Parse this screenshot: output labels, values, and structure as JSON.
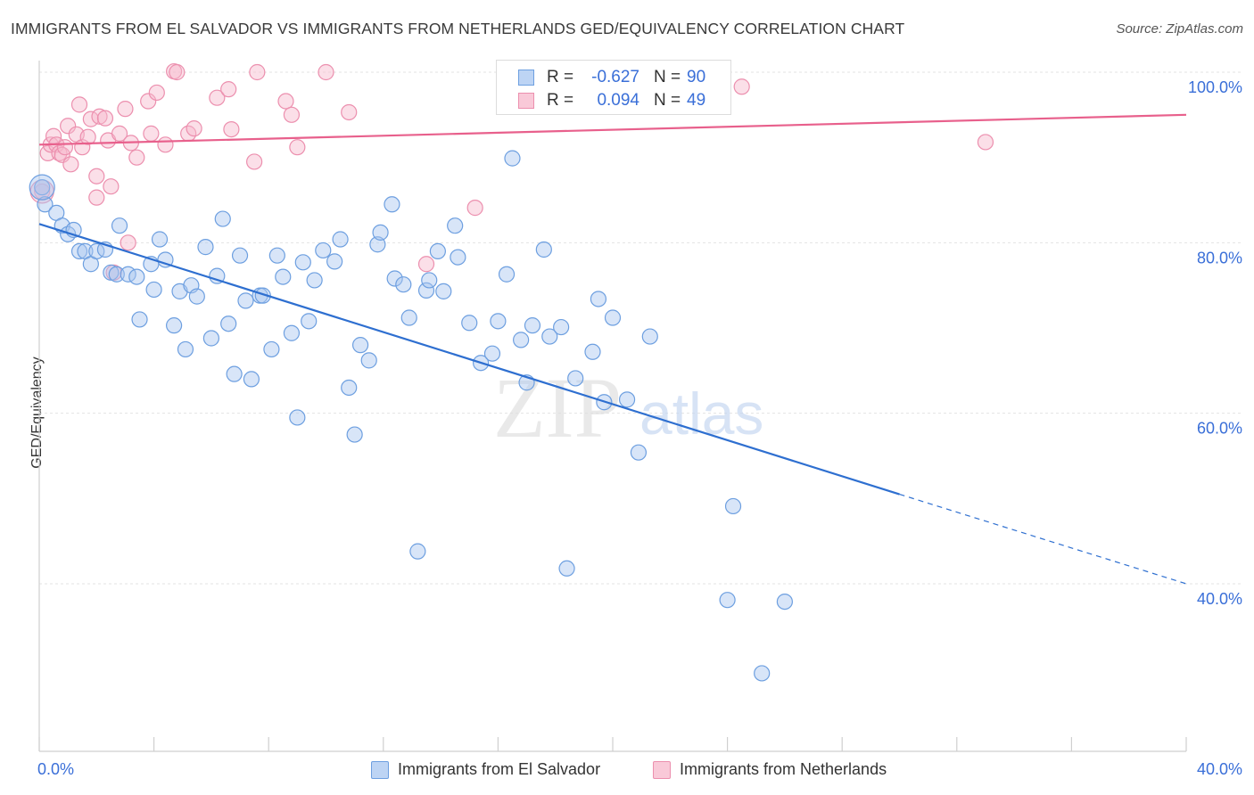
{
  "header": {
    "title": "IMMIGRANTS FROM EL SALVADOR VS IMMIGRANTS FROM NETHERLANDS GED/EQUIVALENCY CORRELATION CHART",
    "source": "Source: ZipAtlas.com"
  },
  "watermark": {
    "zip": "ZIP",
    "atlas": "atlas"
  },
  "colors": {
    "blue_fill": "#a9c6f0",
    "blue_stroke": "#6d9fe0",
    "blue_line": "#2e6fd0",
    "pink_fill": "#f6b9cc",
    "pink_stroke": "#ec8fae",
    "pink_line": "#e8608c",
    "value_text": "#3a6fd8",
    "grid": "#e3e3e3",
    "axis": "#cfcfcf"
  },
  "legend_top": {
    "rows": [
      {
        "r_label": "R =",
        "r_value": "-0.627",
        "n_label": "N =",
        "n_value": "90"
      },
      {
        "r_label": "R =",
        "r_value": "0.094",
        "n_label": "N =",
        "n_value": "49"
      }
    ]
  },
  "chart_data": {
    "type": "scatter",
    "title": "IMMIGRANTS FROM EL SALVADOR VS IMMIGRANTS FROM NETHERLANDS GED/EQUIVALENCY CORRELATION CHART",
    "xlabel": "",
    "ylabel": "GED/Equivalency",
    "xlim": [
      0,
      40
    ],
    "ylim": [
      22,
      104
    ],
    "x_tick_labels": [
      "0.0%",
      "40.0%"
    ],
    "y_ticks": [
      {
        "value": 100,
        "label": "100.0%"
      },
      {
        "value": 80,
        "label": "80.0%"
      },
      {
        "value": 60,
        "label": "60.0%"
      },
      {
        "value": 40,
        "label": "40.0%"
      }
    ],
    "grid": true,
    "legend_position": "bottom",
    "series": [
      {
        "name": "Immigrants from El Salvador",
        "color": "#a9c6f0",
        "trend": {
          "x0": 0,
          "y0": 82.2,
          "x1": 30,
          "y1": 50.5,
          "dash_to_x": 40,
          "dash_to_y": 40.0
        },
        "points": [
          [
            0.1,
            86.5
          ],
          [
            0.2,
            84.5
          ],
          [
            0.6,
            83.5
          ],
          [
            0.8,
            82
          ],
          [
            1.0,
            81
          ],
          [
            1.2,
            81.5
          ],
          [
            1.4,
            79
          ],
          [
            1.6,
            79
          ],
          [
            1.8,
            77.5
          ],
          [
            2.0,
            79
          ],
          [
            2.3,
            79.2
          ],
          [
            2.5,
            76.5
          ],
          [
            2.7,
            76.3
          ],
          [
            2.8,
            82
          ],
          [
            3.1,
            76.3
          ],
          [
            3.4,
            76
          ],
          [
            3.5,
            71
          ],
          [
            3.9,
            77.5
          ],
          [
            4.0,
            74.5
          ],
          [
            4.2,
            80.4
          ],
          [
            4.4,
            78
          ],
          [
            4.7,
            70.3
          ],
          [
            4.9,
            74.3
          ],
          [
            5.1,
            67.5
          ],
          [
            5.3,
            75
          ],
          [
            5.5,
            73.7
          ],
          [
            5.8,
            79.5
          ],
          [
            6.0,
            68.8
          ],
          [
            6.2,
            76.1
          ],
          [
            6.4,
            82.8
          ],
          [
            6.6,
            70.5
          ],
          [
            6.8,
            64.6
          ],
          [
            7.0,
            78.5
          ],
          [
            7.2,
            73.2
          ],
          [
            7.4,
            64
          ],
          [
            7.7,
            73.8
          ],
          [
            7.8,
            73.8
          ],
          [
            8.1,
            67.5
          ],
          [
            8.3,
            78.5
          ],
          [
            8.5,
            76
          ],
          [
            8.8,
            69.4
          ],
          [
            9.0,
            59.5
          ],
          [
            9.2,
            77.7
          ],
          [
            9.4,
            70.8
          ],
          [
            9.6,
            75.6
          ],
          [
            9.9,
            79.1
          ],
          [
            10.3,
            77.8
          ],
          [
            10.5,
            80.4
          ],
          [
            10.8,
            63
          ],
          [
            11.0,
            57.5
          ],
          [
            11.2,
            68
          ],
          [
            11.5,
            66.2
          ],
          [
            11.8,
            79.8
          ],
          [
            11.9,
            81.2
          ],
          [
            12.3,
            84.5
          ],
          [
            12.4,
            75.8
          ],
          [
            12.7,
            75.1
          ],
          [
            12.9,
            71.2
          ],
          [
            13.2,
            43.8
          ],
          [
            13.5,
            74.4
          ],
          [
            13.6,
            75.6
          ],
          [
            13.9,
            79
          ],
          [
            14.1,
            74.3
          ],
          [
            14.5,
            82
          ],
          [
            14.6,
            78.3
          ],
          [
            15.0,
            70.6
          ],
          [
            15.4,
            65.9
          ],
          [
            15.8,
            67
          ],
          [
            16.0,
            70.8
          ],
          [
            16.3,
            76.3
          ],
          [
            16.5,
            89.9
          ],
          [
            16.8,
            68.6
          ],
          [
            17.0,
            63.6
          ],
          [
            17.2,
            70.3
          ],
          [
            17.6,
            79.2
          ],
          [
            17.8,
            69
          ],
          [
            18.2,
            70.1
          ],
          [
            18.4,
            41.8
          ],
          [
            18.7,
            64.1
          ],
          [
            19.3,
            67.2
          ],
          [
            19.5,
            73.4
          ],
          [
            19.7,
            61.3
          ],
          [
            20.0,
            71.2
          ],
          [
            20.5,
            61.6
          ],
          [
            20.9,
            55.4
          ],
          [
            21.3,
            69
          ],
          [
            24.0,
            38.1
          ],
          [
            24.2,
            49.1
          ],
          [
            25.2,
            29.5
          ],
          [
            26.0,
            37.9
          ]
        ]
      },
      {
        "name": "Immigrants from Netherlands",
        "color": "#f6b9cc",
        "trend": {
          "x0": 0,
          "y0": 91.5,
          "x1": 40,
          "y1": 95.0
        },
        "points": [
          [
            0.1,
            86
          ],
          [
            0.3,
            90.5
          ],
          [
            0.4,
            91.5
          ],
          [
            0.5,
            92.5
          ],
          [
            0.6,
            91.5
          ],
          [
            0.7,
            90.5
          ],
          [
            0.8,
            90.3
          ],
          [
            0.9,
            91.2
          ],
          [
            1.0,
            93.7
          ],
          [
            1.1,
            89.2
          ],
          [
            1.3,
            92.7
          ],
          [
            1.4,
            96.2
          ],
          [
            1.5,
            91.2
          ],
          [
            1.7,
            92.4
          ],
          [
            1.8,
            94.5
          ],
          [
            2.0,
            87.8
          ],
          [
            2.0,
            85.3
          ],
          [
            2.1,
            94.8
          ],
          [
            2.3,
            94.6
          ],
          [
            2.4,
            92
          ],
          [
            2.5,
            86.6
          ],
          [
            2.6,
            76.5
          ],
          [
            2.8,
            92.8
          ],
          [
            3.0,
            95.7
          ],
          [
            3.1,
            80
          ],
          [
            3.2,
            91.7
          ],
          [
            3.4,
            90
          ],
          [
            3.8,
            96.6
          ],
          [
            3.9,
            92.8
          ],
          [
            4.1,
            97.6
          ],
          [
            4.4,
            91.5
          ],
          [
            4.7,
            100.1
          ],
          [
            4.8,
            100
          ],
          [
            5.2,
            92.8
          ],
          [
            5.4,
            93.4
          ],
          [
            6.2,
            97
          ],
          [
            6.6,
            98
          ],
          [
            6.7,
            93.3
          ],
          [
            7.5,
            89.5
          ],
          [
            7.6,
            100
          ],
          [
            8.6,
            96.6
          ],
          [
            8.8,
            95
          ],
          [
            9.0,
            91.2
          ],
          [
            10.0,
            100
          ],
          [
            10.8,
            95.3
          ],
          [
            13.5,
            77.5
          ],
          [
            15.2,
            84.1
          ],
          [
            24.5,
            98.3
          ],
          [
            33.0,
            91.8
          ]
        ]
      }
    ]
  },
  "legend_bottom": {
    "items": [
      {
        "label": "Immigrants from El Salvador"
      },
      {
        "label": "Immigrants from Netherlands"
      }
    ]
  }
}
